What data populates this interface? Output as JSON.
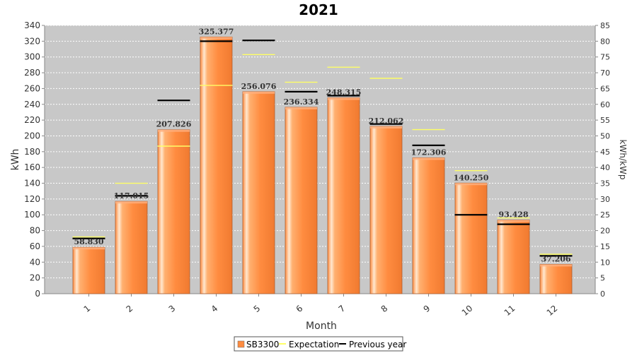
{
  "chart_data": {
    "type": "bar",
    "title": "2021",
    "xlabel": "Month",
    "ylabel": "kWh",
    "y2label": "kWh/kWp",
    "ylim": [
      0,
      340
    ],
    "y2lim": [
      0,
      85
    ],
    "yticks": [
      0,
      20,
      40,
      60,
      80,
      100,
      120,
      140,
      160,
      180,
      200,
      220,
      240,
      260,
      280,
      300,
      320,
      340
    ],
    "y2ticks": [
      0,
      5,
      10,
      15,
      20,
      25,
      30,
      35,
      40,
      45,
      50,
      55,
      60,
      65,
      70,
      75,
      80,
      85
    ],
    "categories": [
      "1",
      "2",
      "3",
      "4",
      "5",
      "6",
      "7",
      "8",
      "9",
      "10",
      "11",
      "12"
    ],
    "grid": true,
    "legend_position": "bottom",
    "series": [
      {
        "name": "SB3300",
        "kind": "bar",
        "color": "#ff8c40",
        "values": [
          58.83,
          117.015,
          207.826,
          325.377,
          256.076,
          236.334,
          248.315,
          212.062,
          172.306,
          140.25,
          93.428,
          37.206
        ],
        "labels": [
          "58.830",
          "117.015",
          "207.826",
          "325.377",
          "256.076",
          "236.334",
          "248.315",
          "212.062",
          "172.306",
          "140.250",
          "93.428",
          "37.206"
        ]
      },
      {
        "name": "Expectation",
        "kind": "marker",
        "color": "#ffff66",
        "values": [
          72,
          140,
          187,
          264,
          303,
          268,
          287,
          273,
          208,
          156,
          96,
          50
        ]
      },
      {
        "name": "Previous year",
        "kind": "marker",
        "color": "#000000",
        "values": [
          70,
          124,
          245,
          320,
          321,
          256,
          251,
          215,
          188,
          100,
          88,
          48
        ]
      }
    ]
  }
}
